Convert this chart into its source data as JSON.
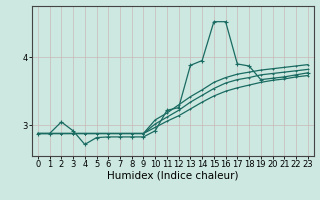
{
  "title": "",
  "xlabel": "Humidex (Indice chaleur)",
  "bg_color": "#cce8e0",
  "grid_color": "#c8b8b8",
  "line_color": "#1a6b62",
  "x_ticks": [
    0,
    1,
    2,
    3,
    4,
    5,
    6,
    7,
    8,
    9,
    10,
    11,
    12,
    13,
    14,
    15,
    16,
    17,
    18,
    19,
    20,
    21,
    22,
    23
  ],
  "y_ticks": [
    3,
    4
  ],
  "xlim": [
    -0.5,
    23.5
  ],
  "ylim": [
    2.55,
    4.75
  ],
  "series": [
    [
      2.88,
      2.88,
      3.05,
      2.92,
      2.72,
      2.82,
      2.83,
      2.83,
      2.83,
      2.83,
      2.92,
      3.22,
      3.26,
      3.88,
      3.95,
      4.52,
      4.52,
      3.9,
      3.87,
      3.67,
      3.69,
      3.71,
      3.74,
      3.77
    ],
    [
      2.88,
      2.88,
      2.88,
      2.88,
      2.88,
      2.88,
      2.88,
      2.88,
      2.88,
      2.88,
      3.08,
      3.18,
      3.3,
      3.42,
      3.52,
      3.63,
      3.7,
      3.75,
      3.78,
      3.81,
      3.83,
      3.85,
      3.87,
      3.89
    ],
    [
      2.88,
      2.88,
      2.88,
      2.88,
      2.88,
      2.88,
      2.88,
      2.88,
      2.88,
      2.88,
      3.02,
      3.12,
      3.22,
      3.34,
      3.44,
      3.54,
      3.62,
      3.67,
      3.7,
      3.74,
      3.76,
      3.78,
      3.8,
      3.82
    ],
    [
      2.88,
      2.88,
      2.88,
      2.88,
      2.88,
      2.88,
      2.88,
      2.88,
      2.88,
      2.88,
      2.97,
      3.06,
      3.14,
      3.24,
      3.34,
      3.43,
      3.5,
      3.55,
      3.59,
      3.63,
      3.66,
      3.68,
      3.71,
      3.73
    ]
  ],
  "marker": "+",
  "markersize": 3.5,
  "linewidth": 0.9,
  "tick_fontsize": 6.0,
  "xlabel_fontsize": 7.5
}
